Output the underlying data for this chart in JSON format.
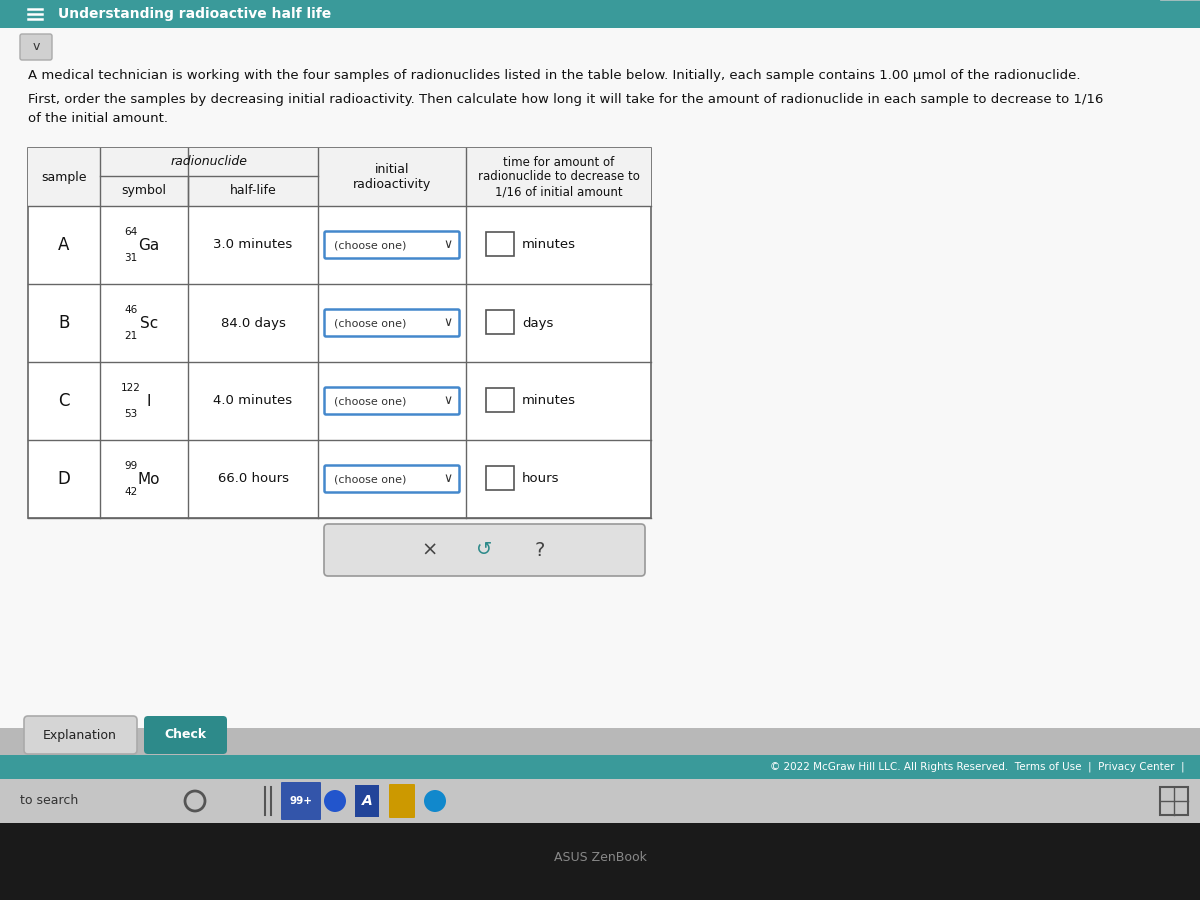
{
  "title": "Understanding radioactive half life",
  "title_bg": "#3a9a9a",
  "title_color": "#ffffff",
  "body_bg": "#b8b8b8",
  "content_bg": "#f0f0f0",
  "white_area_bg": "#f8f8f8",
  "intro_line1": "A medical technician is working with the four samples of radionuclides listed in the table below. Initially, each sample contains 1.00 μmol of the radionuclide.",
  "intro_line2": "First, order the samples by decreasing initial radioactivity. Then calculate how long it will take for the amount of radionuclide in each sample to decrease to 1/16",
  "intro_line3": "of the initial amount.",
  "table_header_sample": "sample",
  "table_header_radionuclide": "radionuclide",
  "table_header_symbol": "symbol",
  "table_header_halflife": "half-life",
  "table_header_initial": "initial\nradioactivity",
  "table_header_time": "time for amount of\nradionuclide to decrease to\n1/16 of initial amount",
  "rows": [
    {
      "sample": "A",
      "mass": "64",
      "symbol": "Ga",
      "atomic": "31",
      "halflife": "3.0 minutes",
      "unit": "minutes"
    },
    {
      "sample": "B",
      "mass": "46",
      "symbol": "Sc",
      "atomic": "21",
      "halflife": "84.0 days",
      "unit": "days"
    },
    {
      "sample": "C",
      "mass": "122",
      "symbol": "I",
      "atomic": "53",
      "halflife": "4.0 minutes",
      "unit": "minutes"
    },
    {
      "sample": "D",
      "mass": "99",
      "symbol": "Mo",
      "atomic": "42",
      "halflife": "66.0 hours",
      "unit": "hours"
    }
  ],
  "footer_text": "© 2022 McGraw Hill LLC. All Rights Reserved.  Terms of Use  |  Privacy Center  |",
  "footer_bg": "#3a9a9a",
  "taskbar_bg": "#c0c0c0",
  "bottom_text": "ASUS ZenBook",
  "button1_text": "Explanation",
  "button2_text": "Check",
  "button2_bg": "#2d8a8a",
  "choose_one_bg": "#ffffff",
  "choose_one_border": "#4488cc",
  "dialog_bg": "#e0e0e0",
  "dialog_border": "#999999",
  "x_symbol": "×",
  "undo_symbol": "↺",
  "help_symbol": "?"
}
